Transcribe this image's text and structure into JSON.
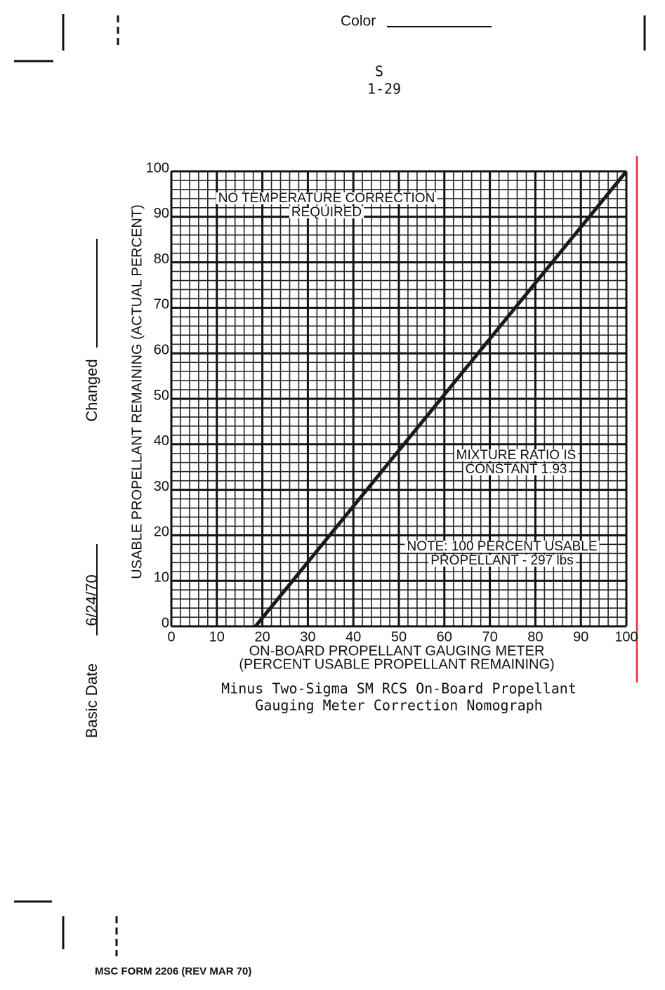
{
  "header": {
    "color_label": "Color",
    "section": "S",
    "page": "1-29"
  },
  "chart_data": {
    "type": "line",
    "x": [
      18.5,
      100
    ],
    "values": [
      0,
      100
    ],
    "color": "#1a1a1a",
    "xlim": [
      0,
      100
    ],
    "ylim": [
      0,
      100
    ],
    "xticks": [
      0,
      10,
      20,
      30,
      40,
      50,
      60,
      70,
      80,
      90,
      100
    ],
    "yticks": [
      0,
      10,
      20,
      30,
      40,
      50,
      60,
      70,
      80,
      90,
      100
    ],
    "grid": true,
    "minor_grid_per_major": 5,
    "x_label": [
      "ON-BOARD PROPELLANT GAUGING METER",
      "(PERCENT USABLE PROPELLANT REMAINING)"
    ],
    "y_label": "USABLE PROPELLANT REMAINING (ACTUAL PERCENT)",
    "annotations": [
      [
        "NO TEMPERATURE CORRECTION",
        "REQUIRED"
      ],
      [
        "MIXTURE RATIO IS",
        "CONSTANT 1.93"
      ],
      [
        "NOTE:  100 PERCENT USABLE",
        "PROPELLANT - 297 lbs"
      ]
    ],
    "caption": [
      "Minus Two-Sigma SM RCS On-Board Propellant",
      "Gauging Meter Correction Nomograph"
    ]
  },
  "margin": {
    "changed_label": "Changed",
    "basic_date_label": "Basic Date",
    "basic_date": "6/24/70"
  },
  "footer": {
    "form": "MSC FORM 2206 (REV MAR 70)"
  }
}
